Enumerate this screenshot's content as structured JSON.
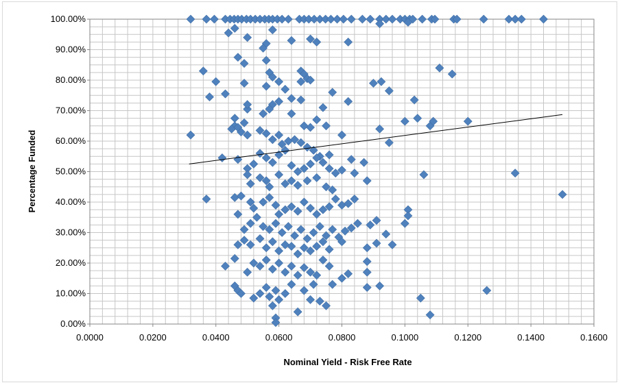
{
  "chart_data": {
    "type": "scatter",
    "xlabel": "Nominal Yield - Risk Free Rate",
    "ylabel": "Percentage Funded",
    "xlim": [
      0,
      0.16
    ],
    "ylim": [
      0,
      1
    ],
    "x_ticks": [
      "0.0000",
      "0.0200",
      "0.0400",
      "0.0600",
      "0.0800",
      "0.1000",
      "0.1200",
      "0.1400",
      "0.1600"
    ],
    "y_ticks": [
      "0.00%",
      "10.00%",
      "20.00%",
      "30.00%",
      "40.00%",
      "50.00%",
      "60.00%",
      "70.00%",
      "80.00%",
      "90.00%",
      "100.00%"
    ],
    "grid": true,
    "marker_color": "#4f81bd",
    "trendline": {
      "x": [
        0.0315,
        0.15
      ],
      "y": [
        0.525,
        0.687
      ]
    },
    "points": [
      [
        0.032,
        1.0
      ],
      [
        0.037,
        1.0
      ],
      [
        0.0395,
        1.0
      ],
      [
        0.043,
        1.0
      ],
      [
        0.0445,
        1.0
      ],
      [
        0.0458,
        1.0
      ],
      [
        0.047,
        1.0
      ],
      [
        0.0482,
        1.0
      ],
      [
        0.0497,
        1.0
      ],
      [
        0.051,
        1.0
      ],
      [
        0.0525,
        1.0
      ],
      [
        0.054,
        1.0
      ],
      [
        0.0555,
        1.0
      ],
      [
        0.0568,
        1.0
      ],
      [
        0.058,
        1.0
      ],
      [
        0.0595,
        1.0
      ],
      [
        0.061,
        1.0
      ],
      [
        0.063,
        1.0
      ],
      [
        0.0665,
        1.0
      ],
      [
        0.068,
        1.0
      ],
      [
        0.0695,
        1.0
      ],
      [
        0.0712,
        1.0
      ],
      [
        0.073,
        1.0
      ],
      [
        0.0748,
        1.0
      ],
      [
        0.0765,
        1.0
      ],
      [
        0.0785,
        1.0
      ],
      [
        0.0805,
        1.0
      ],
      [
        0.083,
        1.0
      ],
      [
        0.0865,
        1.0
      ],
      [
        0.089,
        1.0
      ],
      [
        0.092,
        1.0
      ],
      [
        0.094,
        1.0
      ],
      [
        0.096,
        1.0
      ],
      [
        0.0985,
        1.0
      ],
      [
        0.1,
        1.0
      ],
      [
        0.1015,
        1.0
      ],
      [
        0.1025,
        1.0
      ],
      [
        0.1055,
        1.0
      ],
      [
        0.1085,
        1.0
      ],
      [
        0.1095,
        1.0
      ],
      [
        0.1155,
        1.0
      ],
      [
        0.1165,
        1.0
      ],
      [
        0.125,
        1.0
      ],
      [
        0.133,
        1.0
      ],
      [
        0.135,
        1.0
      ],
      [
        0.137,
        1.0
      ],
      [
        0.144,
        1.0
      ],
      [
        0.092,
        0.985
      ],
      [
        0.101,
        0.99
      ],
      [
        0.046,
        0.97
      ],
      [
        0.044,
        0.955
      ],
      [
        0.058,
        0.965
      ],
      [
        0.05,
        0.94
      ],
      [
        0.064,
        0.93
      ],
      [
        0.07,
        0.935
      ],
      [
        0.072,
        0.925
      ],
      [
        0.082,
        0.925
      ],
      [
        0.056,
        0.92
      ],
      [
        0.055,
        0.905
      ],
      [
        0.047,
        0.875
      ],
      [
        0.049,
        0.855
      ],
      [
        0.056,
        0.865
      ],
      [
        0.036,
        0.83
      ],
      [
        0.057,
        0.825
      ],
      [
        0.058,
        0.81
      ],
      [
        0.067,
        0.83
      ],
      [
        0.068,
        0.82
      ],
      [
        0.069,
        0.805
      ],
      [
        0.07,
        0.8
      ],
      [
        0.067,
        0.795
      ],
      [
        0.062,
        0.77
      ],
      [
        0.06,
        0.795
      ],
      [
        0.056,
        0.78
      ],
      [
        0.049,
        0.79
      ],
      [
        0.04,
        0.795
      ],
      [
        0.038,
        0.745
      ],
      [
        0.043,
        0.755
      ],
      [
        0.06,
        0.73
      ],
      [
        0.058,
        0.72
      ],
      [
        0.064,
        0.74
      ],
      [
        0.067,
        0.735
      ],
      [
        0.074,
        0.71
      ],
      [
        0.077,
        0.76
      ],
      [
        0.082,
        0.73
      ],
      [
        0.09,
        0.79
      ],
      [
        0.0925,
        0.795
      ],
      [
        0.095,
        0.765
      ],
      [
        0.103,
        0.735
      ],
      [
        0.111,
        0.84
      ],
      [
        0.115,
        0.82
      ],
      [
        0.05,
        0.705
      ],
      [
        0.05,
        0.72
      ],
      [
        0.055,
        0.69
      ],
      [
        0.057,
        0.705
      ],
      [
        0.064,
        0.69
      ],
      [
        0.068,
        0.65
      ],
      [
        0.07,
        0.645
      ],
      [
        0.072,
        0.67
      ],
      [
        0.075,
        0.65
      ],
      [
        0.046,
        0.675
      ],
      [
        0.046,
        0.65
      ],
      [
        0.045,
        0.64
      ],
      [
        0.047,
        0.645
      ],
      [
        0.048,
        0.63
      ],
      [
        0.049,
        0.66
      ],
      [
        0.05,
        0.62
      ],
      [
        0.054,
        0.635
      ],
      [
        0.056,
        0.625
      ],
      [
        0.058,
        0.605
      ],
      [
        0.06,
        0.62
      ],
      [
        0.061,
        0.59
      ],
      [
        0.063,
        0.6
      ],
      [
        0.065,
        0.605
      ],
      [
        0.067,
        0.595
      ],
      [
        0.069,
        0.58
      ],
      [
        0.071,
        0.57
      ],
      [
        0.073,
        0.55
      ],
      [
        0.076,
        0.555
      ],
      [
        0.08,
        0.62
      ],
      [
        0.032,
        0.62
      ],
      [
        0.092,
        0.64
      ],
      [
        0.095,
        0.595
      ],
      [
        0.1,
        0.665
      ],
      [
        0.104,
        0.675
      ],
      [
        0.108,
        0.65
      ],
      [
        0.109,
        0.665
      ],
      [
        0.12,
        0.665
      ],
      [
        0.042,
        0.545
      ],
      [
        0.047,
        0.54
      ],
      [
        0.05,
        0.51
      ],
      [
        0.052,
        0.525
      ],
      [
        0.054,
        0.56
      ],
      [
        0.056,
        0.545
      ],
      [
        0.058,
        0.53
      ],
      [
        0.06,
        0.555
      ],
      [
        0.062,
        0.57
      ],
      [
        0.064,
        0.52
      ],
      [
        0.066,
        0.5
      ],
      [
        0.068,
        0.51
      ],
      [
        0.07,
        0.525
      ],
      [
        0.072,
        0.545
      ],
      [
        0.074,
        0.53
      ],
      [
        0.076,
        0.51
      ],
      [
        0.078,
        0.495
      ],
      [
        0.08,
        0.505
      ],
      [
        0.083,
        0.54
      ],
      [
        0.087,
        0.53
      ],
      [
        0.088,
        0.47
      ],
      [
        0.084,
        0.495
      ],
      [
        0.106,
        0.49
      ],
      [
        0.135,
        0.495
      ],
      [
        0.05,
        0.49
      ],
      [
        0.051,
        0.46
      ],
      [
        0.054,
        0.48
      ],
      [
        0.056,
        0.47
      ],
      [
        0.057,
        0.45
      ],
      [
        0.06,
        0.49
      ],
      [
        0.062,
        0.46
      ],
      [
        0.064,
        0.47
      ],
      [
        0.066,
        0.455
      ],
      [
        0.069,
        0.47
      ],
      [
        0.072,
        0.48
      ],
      [
        0.075,
        0.45
      ],
      [
        0.077,
        0.44
      ],
      [
        0.037,
        0.41
      ],
      [
        0.046,
        0.415
      ],
      [
        0.048,
        0.42
      ],
      [
        0.051,
        0.4
      ],
      [
        0.052,
        0.38
      ],
      [
        0.055,
        0.4
      ],
      [
        0.057,
        0.415
      ],
      [
        0.059,
        0.39
      ],
      [
        0.06,
        0.36
      ],
      [
        0.062,
        0.375
      ],
      [
        0.064,
        0.385
      ],
      [
        0.066,
        0.37
      ],
      [
        0.068,
        0.4
      ],
      [
        0.07,
        0.38
      ],
      [
        0.072,
        0.36
      ],
      [
        0.074,
        0.375
      ],
      [
        0.076,
        0.385
      ],
      [
        0.078,
        0.41
      ],
      [
        0.08,
        0.39
      ],
      [
        0.082,
        0.395
      ],
      [
        0.084,
        0.41
      ],
      [
        0.101,
        0.375
      ],
      [
        0.101,
        0.355
      ],
      [
        0.15,
        0.425
      ],
      [
        0.047,
        0.36
      ],
      [
        0.049,
        0.31
      ],
      [
        0.051,
        0.33
      ],
      [
        0.053,
        0.35
      ],
      [
        0.055,
        0.32
      ],
      [
        0.057,
        0.31
      ],
      [
        0.059,
        0.33
      ],
      [
        0.061,
        0.3
      ],
      [
        0.063,
        0.32
      ],
      [
        0.065,
        0.29
      ],
      [
        0.067,
        0.31
      ],
      [
        0.069,
        0.28
      ],
      [
        0.071,
        0.3
      ],
      [
        0.073,
        0.32
      ],
      [
        0.075,
        0.29
      ],
      [
        0.077,
        0.31
      ],
      [
        0.079,
        0.285
      ],
      [
        0.081,
        0.305
      ],
      [
        0.083,
        0.315
      ],
      [
        0.085,
        0.33
      ],
      [
        0.089,
        0.325
      ],
      [
        0.091,
        0.34
      ],
      [
        0.094,
        0.295
      ],
      [
        0.1,
        0.33
      ],
      [
        0.047,
        0.26
      ],
      [
        0.049,
        0.275
      ],
      [
        0.051,
        0.26
      ],
      [
        0.054,
        0.28
      ],
      [
        0.056,
        0.25
      ],
      [
        0.058,
        0.27
      ],
      [
        0.06,
        0.24
      ],
      [
        0.062,
        0.26
      ],
      [
        0.064,
        0.255
      ],
      [
        0.066,
        0.23
      ],
      [
        0.068,
        0.25
      ],
      [
        0.07,
        0.24
      ],
      [
        0.072,
        0.255
      ],
      [
        0.074,
        0.27
      ],
      [
        0.076,
        0.245
      ],
      [
        0.08,
        0.27
      ],
      [
        0.088,
        0.25
      ],
      [
        0.091,
        0.265
      ],
      [
        0.096,
        0.26
      ],
      [
        0.043,
        0.19
      ],
      [
        0.046,
        0.215
      ],
      [
        0.05,
        0.17
      ],
      [
        0.052,
        0.2
      ],
      [
        0.054,
        0.19
      ],
      [
        0.056,
        0.21
      ],
      [
        0.058,
        0.18
      ],
      [
        0.06,
        0.2
      ],
      [
        0.062,
        0.17
      ],
      [
        0.064,
        0.19
      ],
      [
        0.066,
        0.16
      ],
      [
        0.068,
        0.185
      ],
      [
        0.07,
        0.17
      ],
      [
        0.072,
        0.16
      ],
      [
        0.074,
        0.21
      ],
      [
        0.076,
        0.19
      ],
      [
        0.08,
        0.15
      ],
      [
        0.082,
        0.165
      ],
      [
        0.088,
        0.17
      ],
      [
        0.088,
        0.205
      ],
      [
        0.046,
        0.125
      ],
      [
        0.047,
        0.11
      ],
      [
        0.048,
        0.1
      ],
      [
        0.052,
        0.085
      ],
      [
        0.054,
        0.1
      ],
      [
        0.056,
        0.12
      ],
      [
        0.057,
        0.09
      ],
      [
        0.059,
        0.11
      ],
      [
        0.06,
        0.08
      ],
      [
        0.062,
        0.1
      ],
      [
        0.064,
        0.13
      ],
      [
        0.066,
        0.04
      ],
      [
        0.068,
        0.11
      ],
      [
        0.07,
        0.08
      ],
      [
        0.071,
        0.13
      ],
      [
        0.073,
        0.075
      ],
      [
        0.075,
        0.06
      ],
      [
        0.077,
        0.13
      ],
      [
        0.088,
        0.12
      ],
      [
        0.092,
        0.125
      ],
      [
        0.105,
        0.085
      ],
      [
        0.126,
        0.11
      ],
      [
        0.058,
        0.06
      ],
      [
        0.059,
        0.02
      ],
      [
        0.059,
        0.005
      ],
      [
        0.108,
        0.03
      ]
    ]
  }
}
